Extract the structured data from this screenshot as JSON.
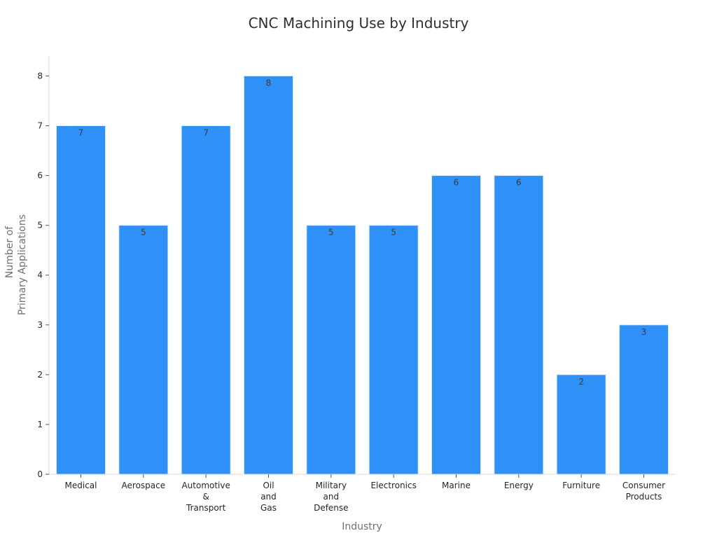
{
  "chart_data": {
    "type": "bar",
    "title": "CNC Machining Use by Industry",
    "xlabel": "Industry",
    "ylabel_lines": [
      "Number of",
      "Primary Applications"
    ],
    "ylim": [
      0,
      8.4
    ],
    "yticks": [
      0,
      1,
      2,
      3,
      4,
      5,
      6,
      7,
      8
    ],
    "categories": [
      "Medical",
      "Aerospace",
      "Automotive & Transport",
      "Oil and Gas",
      "Military and Defense",
      "Electronics",
      "Marine",
      "Energy",
      "Furniture",
      "Consumer Products"
    ],
    "category_label_lines": [
      [
        "Medical"
      ],
      [
        "Aerospace"
      ],
      [
        "Automotive",
        "&",
        "Transport"
      ],
      [
        "Oil",
        "and",
        "Gas"
      ],
      [
        "Military",
        "and",
        "Defense"
      ],
      [
        "Electronics"
      ],
      [
        "Marine"
      ],
      [
        "Energy"
      ],
      [
        "Furniture"
      ],
      [
        "Consumer",
        "Products"
      ]
    ],
    "values": [
      7,
      5,
      7,
      8,
      5,
      5,
      6,
      6,
      2,
      3
    ],
    "bar_color": "#2f90f7",
    "legend": null,
    "grid": false
  }
}
